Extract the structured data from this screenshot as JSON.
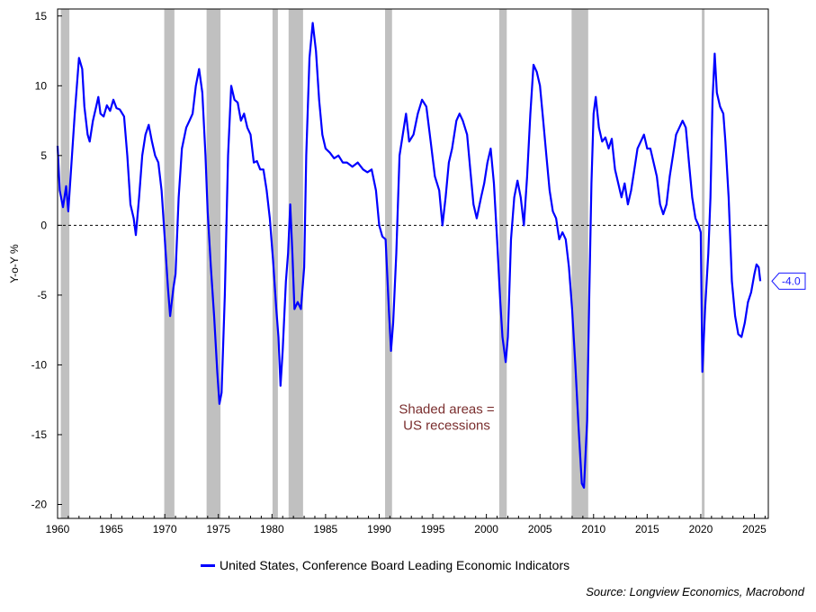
{
  "chart_data": {
    "type": "line",
    "ylabel": "Y-o-Y %",
    "xlim": [
      1960,
      2026.3
    ],
    "ylim": [
      -21,
      15.5
    ],
    "xticks": [
      "1960",
      "1965",
      "1970",
      "1975",
      "1980",
      "1985",
      "1990",
      "1995",
      "2000",
      "2005",
      "2010",
      "2015",
      "2020",
      "2025"
    ],
    "yticks": [
      "15",
      "10",
      "5",
      "0",
      "-5",
      "-10",
      "-15",
      "-20"
    ],
    "reference_line": {
      "y": 0,
      "style": "dashed"
    },
    "recessions": [
      {
        "start": 1960.3,
        "end": 1961.1
      },
      {
        "start": 1969.95,
        "end": 1970.9
      },
      {
        "start": 1973.9,
        "end": 1975.2
      },
      {
        "start": 1980.05,
        "end": 1980.55
      },
      {
        "start": 1981.55,
        "end": 1982.9
      },
      {
        "start": 1990.55,
        "end": 1991.2
      },
      {
        "start": 2001.2,
        "end": 2001.9
      },
      {
        "start": 2007.95,
        "end": 2009.5
      },
      {
        "start": 2020.1,
        "end": 2020.35
      }
    ],
    "annotation": "Shaded areas =\nUS recessions",
    "last_value_label": "-4.0",
    "series": [
      {
        "name": "United States, Conference Board Leading Economic Indicators",
        "color": "#0000ff",
        "points": [
          [
            1960.0,
            5.7
          ],
          [
            1960.2,
            2.5
          ],
          [
            1960.5,
            1.3
          ],
          [
            1960.8,
            2.8
          ],
          [
            1961.0,
            1.0
          ],
          [
            1961.3,
            4.5
          ],
          [
            1961.6,
            8.0
          ],
          [
            1962.0,
            12.0
          ],
          [
            1962.3,
            11.2
          ],
          [
            1962.5,
            8.5
          ],
          [
            1962.8,
            6.5
          ],
          [
            1963.0,
            6.0
          ],
          [
            1963.3,
            7.5
          ],
          [
            1963.6,
            8.5
          ],
          [
            1963.8,
            9.2
          ],
          [
            1964.0,
            8.0
          ],
          [
            1964.3,
            7.8
          ],
          [
            1964.6,
            8.6
          ],
          [
            1964.9,
            8.2
          ],
          [
            1965.2,
            9.0
          ],
          [
            1965.5,
            8.4
          ],
          [
            1965.8,
            8.3
          ],
          [
            1966.2,
            7.8
          ],
          [
            1966.5,
            5.0
          ],
          [
            1966.8,
            1.5
          ],
          [
            1967.1,
            0.5
          ],
          [
            1967.3,
            -0.7
          ],
          [
            1967.6,
            2.0
          ],
          [
            1967.9,
            5.0
          ],
          [
            1968.2,
            6.5
          ],
          [
            1968.5,
            7.2
          ],
          [
            1968.8,
            6.0
          ],
          [
            1969.1,
            5.0
          ],
          [
            1969.4,
            4.5
          ],
          [
            1969.7,
            2.5
          ],
          [
            1970.0,
            -1.0
          ],
          [
            1970.3,
            -4.5
          ],
          [
            1970.5,
            -6.5
          ],
          [
            1970.8,
            -4.5
          ],
          [
            1971.0,
            -3.5
          ],
          [
            1971.3,
            2.0
          ],
          [
            1971.6,
            5.5
          ],
          [
            1972.0,
            7.0
          ],
          [
            1972.3,
            7.5
          ],
          [
            1972.6,
            8.0
          ],
          [
            1972.9,
            10.0
          ],
          [
            1973.2,
            11.2
          ],
          [
            1973.5,
            9.5
          ],
          [
            1973.8,
            5.0
          ],
          [
            1974.0,
            1.0
          ],
          [
            1974.3,
            -3.0
          ],
          [
            1974.6,
            -6.5
          ],
          [
            1974.9,
            -10.5
          ],
          [
            1975.1,
            -12.8
          ],
          [
            1975.3,
            -12.0
          ],
          [
            1975.6,
            -5.0
          ],
          [
            1975.9,
            5.0
          ],
          [
            1976.2,
            10.0
          ],
          [
            1976.5,
            9.0
          ],
          [
            1976.8,
            8.8
          ],
          [
            1977.1,
            7.5
          ],
          [
            1977.4,
            8.0
          ],
          [
            1977.7,
            7.0
          ],
          [
            1978.0,
            6.5
          ],
          [
            1978.3,
            4.5
          ],
          [
            1978.6,
            4.6
          ],
          [
            1978.9,
            4.0
          ],
          [
            1979.2,
            4.0
          ],
          [
            1979.5,
            2.5
          ],
          [
            1979.8,
            0.5
          ],
          [
            1980.1,
            -2.5
          ],
          [
            1980.4,
            -6.0
          ],
          [
            1980.6,
            -8.0
          ],
          [
            1980.8,
            -11.5
          ],
          [
            1981.0,
            -9.0
          ],
          [
            1981.3,
            -4.0
          ],
          [
            1981.5,
            -2.0
          ],
          [
            1981.7,
            1.5
          ],
          [
            1981.9,
            -2.0
          ],
          [
            1982.1,
            -6.0
          ],
          [
            1982.4,
            -5.5
          ],
          [
            1982.7,
            -6.0
          ],
          [
            1983.0,
            -3.0
          ],
          [
            1983.2,
            5.0
          ],
          [
            1983.5,
            12.0
          ],
          [
            1983.8,
            14.5
          ],
          [
            1984.1,
            12.5
          ],
          [
            1984.4,
            9.0
          ],
          [
            1984.7,
            6.5
          ],
          [
            1985.0,
            5.5
          ],
          [
            1985.4,
            5.2
          ],
          [
            1985.8,
            4.8
          ],
          [
            1986.2,
            5.0
          ],
          [
            1986.6,
            4.5
          ],
          [
            1987.0,
            4.5
          ],
          [
            1987.5,
            4.2
          ],
          [
            1988.0,
            4.5
          ],
          [
            1988.5,
            4.0
          ],
          [
            1988.9,
            3.8
          ],
          [
            1989.3,
            4.0
          ],
          [
            1989.7,
            2.5
          ],
          [
            1990.0,
            0.0
          ],
          [
            1990.3,
            -0.8
          ],
          [
            1990.6,
            -1.0
          ],
          [
            1990.9,
            -6.0
          ],
          [
            1991.1,
            -9.0
          ],
          [
            1991.3,
            -7.0
          ],
          [
            1991.6,
            -2.0
          ],
          [
            1991.9,
            5.0
          ],
          [
            1992.2,
            6.5
          ],
          [
            1992.5,
            8.0
          ],
          [
            1992.8,
            6.0
          ],
          [
            1993.2,
            6.5
          ],
          [
            1993.6,
            8.0
          ],
          [
            1994.0,
            9.0
          ],
          [
            1994.4,
            8.5
          ],
          [
            1994.8,
            6.0
          ],
          [
            1995.2,
            3.5
          ],
          [
            1995.6,
            2.5
          ],
          [
            1995.9,
            0.0
          ],
          [
            1996.2,
            2.0
          ],
          [
            1996.5,
            4.5
          ],
          [
            1996.8,
            5.5
          ],
          [
            1997.2,
            7.5
          ],
          [
            1997.5,
            8.0
          ],
          [
            1997.8,
            7.5
          ],
          [
            1998.2,
            6.5
          ],
          [
            1998.5,
            4.0
          ],
          [
            1998.8,
            1.5
          ],
          [
            1999.1,
            0.5
          ],
          [
            1999.5,
            2.0
          ],
          [
            1999.8,
            3.0
          ],
          [
            2000.1,
            4.5
          ],
          [
            2000.4,
            5.5
          ],
          [
            2000.7,
            3.0
          ],
          [
            2001.0,
            -1.0
          ],
          [
            2001.3,
            -5.5
          ],
          [
            2001.5,
            -8.0
          ],
          [
            2001.8,
            -9.8
          ],
          [
            2002.0,
            -8.0
          ],
          [
            2002.3,
            -1.0
          ],
          [
            2002.6,
            2.0
          ],
          [
            2002.9,
            3.2
          ],
          [
            2003.2,
            2.0
          ],
          [
            2003.5,
            0.0
          ],
          [
            2003.8,
            3.5
          ],
          [
            2004.1,
            8.0
          ],
          [
            2004.4,
            11.5
          ],
          [
            2004.7,
            11.0
          ],
          [
            2005.0,
            10.0
          ],
          [
            2005.3,
            7.5
          ],
          [
            2005.6,
            5.0
          ],
          [
            2005.9,
            2.5
          ],
          [
            2006.2,
            1.0
          ],
          [
            2006.5,
            0.5
          ],
          [
            2006.8,
            -1.0
          ],
          [
            2007.1,
            -0.5
          ],
          [
            2007.4,
            -1.0
          ],
          [
            2007.7,
            -3.0
          ],
          [
            2008.0,
            -6.0
          ],
          [
            2008.3,
            -10.0
          ],
          [
            2008.6,
            -14.5
          ],
          [
            2008.9,
            -18.5
          ],
          [
            2009.1,
            -18.8
          ],
          [
            2009.4,
            -14.0
          ],
          [
            2009.6,
            -5.0
          ],
          [
            2009.8,
            3.0
          ],
          [
            2010.0,
            8.0
          ],
          [
            2010.2,
            9.2
          ],
          [
            2010.5,
            7.0
          ],
          [
            2010.8,
            6.0
          ],
          [
            2011.1,
            6.3
          ],
          [
            2011.4,
            5.5
          ],
          [
            2011.7,
            6.2
          ],
          [
            2012.0,
            4.0
          ],
          [
            2012.3,
            3.0
          ],
          [
            2012.6,
            2.0
          ],
          [
            2012.9,
            3.0
          ],
          [
            2013.2,
            1.5
          ],
          [
            2013.5,
            2.5
          ],
          [
            2013.8,
            4.0
          ],
          [
            2014.1,
            5.5
          ],
          [
            2014.4,
            6.0
          ],
          [
            2014.7,
            6.5
          ],
          [
            2015.0,
            5.5
          ],
          [
            2015.3,
            5.5
          ],
          [
            2015.6,
            4.5
          ],
          [
            2015.9,
            3.5
          ],
          [
            2016.2,
            1.5
          ],
          [
            2016.5,
            0.8
          ],
          [
            2016.8,
            1.5
          ],
          [
            2017.1,
            3.5
          ],
          [
            2017.4,
            5.0
          ],
          [
            2017.7,
            6.5
          ],
          [
            2018.0,
            7.0
          ],
          [
            2018.3,
            7.5
          ],
          [
            2018.6,
            7.0
          ],
          [
            2018.9,
            4.5
          ],
          [
            2019.2,
            2.0
          ],
          [
            2019.5,
            0.5
          ],
          [
            2019.8,
            0.0
          ],
          [
            2020.0,
            -0.5
          ],
          [
            2020.15,
            -10.5
          ],
          [
            2020.4,
            -6.0
          ],
          [
            2020.7,
            -2.0
          ],
          [
            2020.9,
            2.0
          ],
          [
            2021.1,
            9.0
          ],
          [
            2021.3,
            12.3
          ],
          [
            2021.5,
            9.5
          ],
          [
            2021.8,
            8.5
          ],
          [
            2022.1,
            8.0
          ],
          [
            2022.3,
            6.0
          ],
          [
            2022.6,
            2.0
          ],
          [
            2022.9,
            -4.0
          ],
          [
            2023.2,
            -6.5
          ],
          [
            2023.5,
            -7.8
          ],
          [
            2023.8,
            -8.0
          ],
          [
            2024.1,
            -7.0
          ],
          [
            2024.4,
            -5.5
          ],
          [
            2024.7,
            -4.8
          ],
          [
            2025.0,
            -3.5
          ],
          [
            2025.2,
            -2.8
          ],
          [
            2025.4,
            -3.0
          ],
          [
            2025.55,
            -4.0
          ]
        ]
      }
    ]
  },
  "legend": {
    "label": "United States, Conference Board Leading Economic Indicators",
    "color": "#0000ff"
  },
  "source": "Source: Longview Economics, Macrobond"
}
